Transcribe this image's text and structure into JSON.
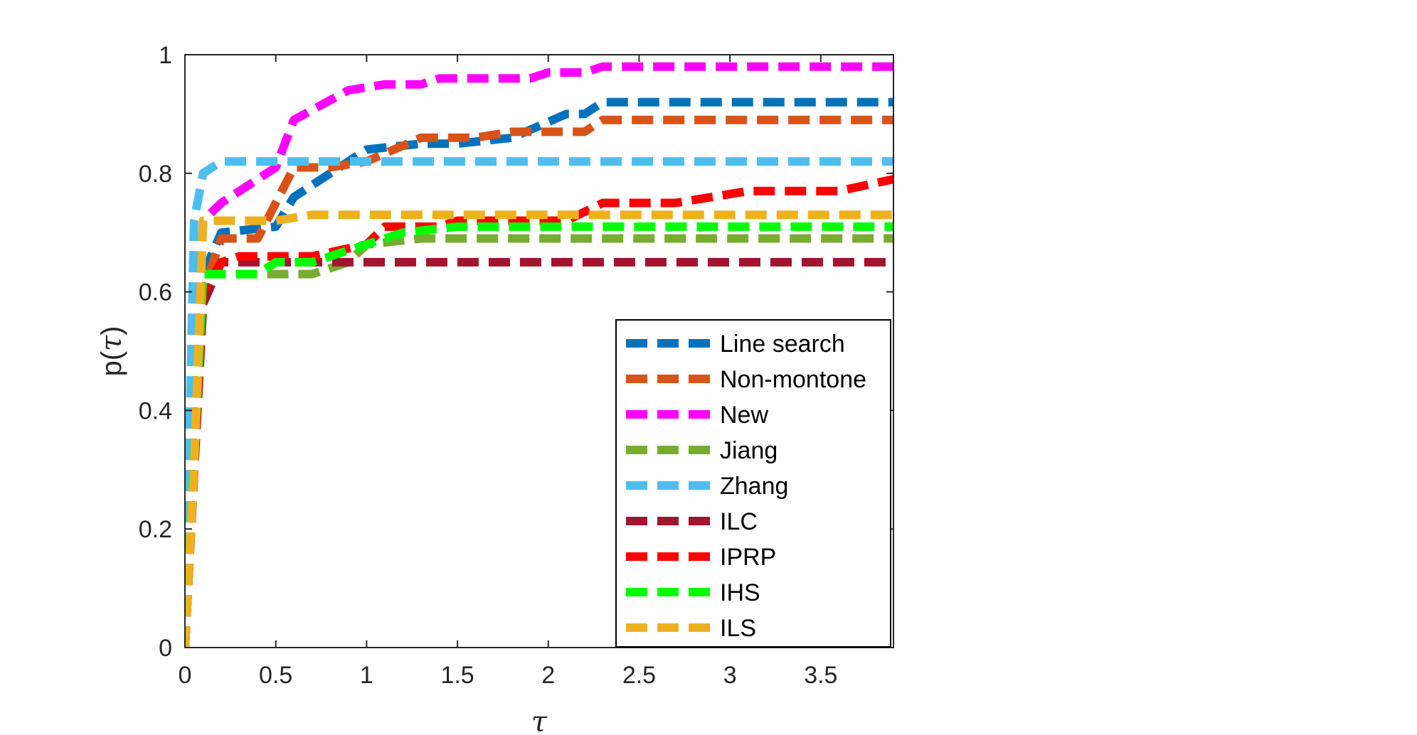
{
  "chart_data": {
    "type": "line",
    "xlabel": "τ",
    "ylabel_prefix": "p(",
    "ylabel_symbol": "τ",
    "ylabel_suffix": ")",
    "xlim": [
      0,
      3.9
    ],
    "ylim": [
      0,
      1
    ],
    "x_ticks": [
      0,
      0.5,
      1,
      1.5,
      2,
      2.5,
      3,
      3.5
    ],
    "x_tick_labels": [
      "0",
      "0.5",
      "1",
      "1.5",
      "2",
      "2.5",
      "3",
      "3.5"
    ],
    "y_ticks": [
      0,
      0.2,
      0.4,
      0.6,
      0.8,
      1
    ],
    "y_tick_labels": [
      "0",
      "0.2",
      "0.4",
      "0.6",
      "0.8",
      "1"
    ],
    "grid": false,
    "legend_position": "bottom-right",
    "line_style": "dashed",
    "series": [
      {
        "name": "Line search",
        "color": "#0072BD",
        "points": [
          [
            0,
            0
          ],
          [
            0.1,
            0.63
          ],
          [
            0.2,
            0.7
          ],
          [
            0.5,
            0.71
          ],
          [
            0.6,
            0.76
          ],
          [
            0.8,
            0.8
          ],
          [
            1.0,
            0.84
          ],
          [
            1.3,
            0.85
          ],
          [
            1.5,
            0.85
          ],
          [
            1.8,
            0.86
          ],
          [
            2.1,
            0.9
          ],
          [
            2.2,
            0.9
          ],
          [
            2.3,
            0.92
          ],
          [
            3.9,
            0.92
          ]
        ]
      },
      {
        "name": "Non-montone",
        "color": "#D95319",
        "points": [
          [
            0,
            0
          ],
          [
            0.1,
            0.6
          ],
          [
            0.2,
            0.69
          ],
          [
            0.4,
            0.69
          ],
          [
            0.6,
            0.81
          ],
          [
            0.8,
            0.81
          ],
          [
            1.0,
            0.82
          ],
          [
            1.3,
            0.86
          ],
          [
            1.6,
            0.86
          ],
          [
            1.8,
            0.87
          ],
          [
            2.2,
            0.87
          ],
          [
            2.3,
            0.89
          ],
          [
            3.9,
            0.89
          ]
        ]
      },
      {
        "name": "New",
        "color": "#FF00FF",
        "points": [
          [
            0,
            0
          ],
          [
            0.1,
            0.72
          ],
          [
            0.2,
            0.75
          ],
          [
            0.5,
            0.81
          ],
          [
            0.6,
            0.89
          ],
          [
            0.9,
            0.94
          ],
          [
            1.1,
            0.95
          ],
          [
            1.3,
            0.95
          ],
          [
            1.4,
            0.96
          ],
          [
            1.9,
            0.96
          ],
          [
            2.0,
            0.97
          ],
          [
            2.2,
            0.97
          ],
          [
            2.3,
            0.98
          ],
          [
            3.9,
            0.98
          ]
        ]
      },
      {
        "name": "Jiang",
        "color": "#77AC30",
        "points": [
          [
            0,
            0
          ],
          [
            0.1,
            0.63
          ],
          [
            0.2,
            0.63
          ],
          [
            0.7,
            0.63
          ],
          [
            0.9,
            0.65
          ],
          [
            1.0,
            0.68
          ],
          [
            1.3,
            0.69
          ],
          [
            3.9,
            0.69
          ]
        ]
      },
      {
        "name": "Zhang",
        "color": "#4DBEEE",
        "points": [
          [
            0,
            0
          ],
          [
            0.05,
            0.72
          ],
          [
            0.1,
            0.8
          ],
          [
            0.2,
            0.82
          ],
          [
            0.5,
            0.82
          ],
          [
            3.9,
            0.82
          ]
        ]
      },
      {
        "name": "ILC",
        "color": "#A2142F",
        "points": [
          [
            0,
            0
          ],
          [
            0.1,
            0.58
          ],
          [
            0.2,
            0.65
          ],
          [
            3.9,
            0.65
          ]
        ]
      },
      {
        "name": "IPRP",
        "color": "#FF0000",
        "points": [
          [
            0,
            0
          ],
          [
            0.1,
            0.6
          ],
          [
            0.2,
            0.65
          ],
          [
            0.3,
            0.66
          ],
          [
            0.7,
            0.66
          ],
          [
            1.0,
            0.68
          ],
          [
            1.1,
            0.71
          ],
          [
            1.4,
            0.71
          ],
          [
            1.5,
            0.72
          ],
          [
            2.1,
            0.72
          ],
          [
            2.3,
            0.75
          ],
          [
            2.7,
            0.75
          ],
          [
            2.9,
            0.76
          ],
          [
            3.1,
            0.77
          ],
          [
            3.6,
            0.77
          ],
          [
            3.9,
            0.79
          ]
        ]
      },
      {
        "name": "IHS",
        "color": "#00FF00",
        "points": [
          [
            0,
            0
          ],
          [
            0.1,
            0.63
          ],
          [
            0.2,
            0.63
          ],
          [
            0.4,
            0.63
          ],
          [
            0.5,
            0.65
          ],
          [
            0.7,
            0.65
          ],
          [
            1.0,
            0.68
          ],
          [
            1.2,
            0.7
          ],
          [
            1.5,
            0.71
          ],
          [
            3.9,
            0.71
          ]
        ]
      },
      {
        "name": "ILS",
        "color": "#EDB120",
        "points": [
          [
            0,
            0
          ],
          [
            0.05,
            0.3
          ],
          [
            0.1,
            0.72
          ],
          [
            0.5,
            0.72
          ],
          [
            0.7,
            0.73
          ],
          [
            3.9,
            0.73
          ]
        ]
      }
    ]
  }
}
